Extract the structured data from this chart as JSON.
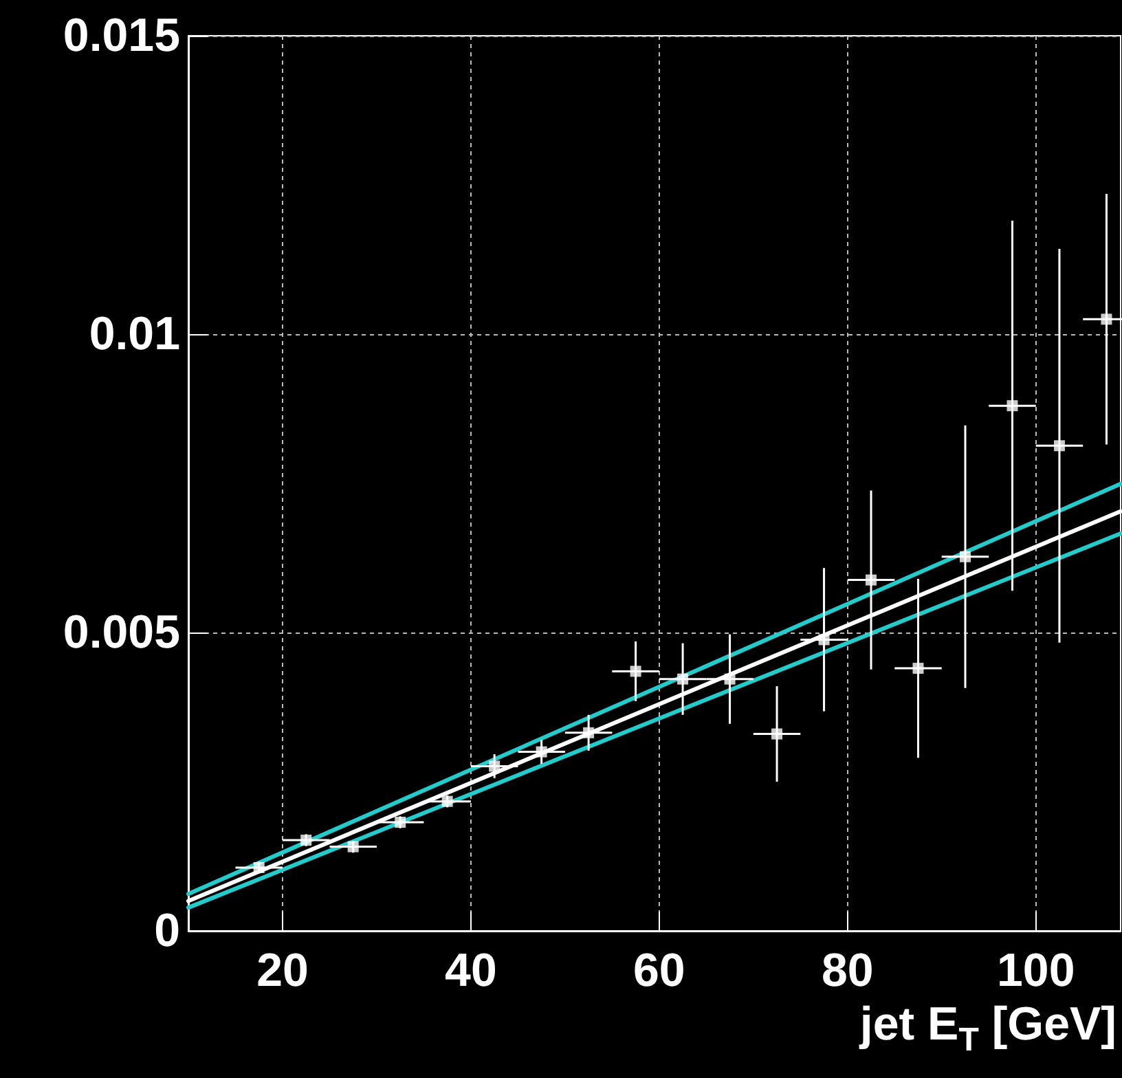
{
  "chart_data": {
    "type": "scatter",
    "xlabel": "jet E$_{T}$ [GeV]",
    "x": [
      17.5,
      22.5,
      27.5,
      32.5,
      37.5,
      42.5,
      47.5,
      52.5,
      57.5,
      62.5,
      67.5,
      72.5,
      77.5,
      82.5,
      87.5,
      92.5,
      97.5,
      102.5,
      107.5
    ],
    "series": [
      {
        "color": "#ffffff",
        "marker": "square",
        "values": [
          0.00106,
          0.00152,
          0.00141,
          0.00182,
          0.00217,
          0.00276,
          0.003,
          0.00332,
          0.00435,
          0.00422,
          0.00422,
          0.0033,
          0.00488,
          0.00588,
          0.0044,
          0.00627,
          0.0088,
          0.00813,
          0.01025
        ],
        "errors": [
          0.0001,
          0.0001,
          0.0001,
          0.0001,
          0.0001,
          0.0002,
          0.0002,
          0.0003,
          0.0005,
          0.0006,
          0.00075,
          0.0008,
          0.0012,
          0.0015,
          0.0015,
          0.0022,
          0.0031,
          0.0033,
          0.0021
        ],
        "xerrors": [
          2.5,
          2.5,
          2.5,
          2.5,
          2.5,
          2.5,
          2.5,
          2.5,
          2.5,
          2.5,
          2.5,
          2.5,
          2.5,
          2.5,
          2.5,
          2.5,
          2.5,
          2.5,
          2.5
        ]
      },
      {
        "type": "line",
        "color": "#ffffff",
        "marker": "none",
        "x": [
          10,
          60,
          109
        ],
        "values": [
          0.0005,
          0.0038,
          0.00703
        ]
      },
      {
        "type": "line",
        "color": "#22cccc",
        "marker": "none",
        "x": [
          10,
          60,
          109
        ],
        "values": [
          0.00062,
          0.00409,
          0.00749
        ]
      },
      {
        "type": "line",
        "color": "#22cccc",
        "marker": "none",
        "x": [
          10,
          60,
          109
        ],
        "values": [
          0.00039,
          0.00356,
          0.00666
        ]
      }
    ],
    "xlim": [
      10,
      109
    ],
    "xticks": [
      20,
      40,
      60,
      80,
      100
    ],
    "ylim": [
      0,
      0.015
    ],
    "yticks": [
      0,
      0.005,
      0.01,
      0.015
    ],
    "grid": true
  }
}
